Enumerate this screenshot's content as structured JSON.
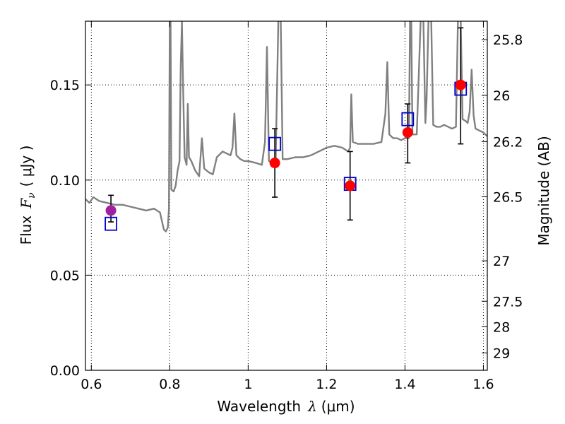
{
  "chart_data": {
    "type": "scatter",
    "xlabel": "Wavelength",
    "xlabel_symbol": "λ",
    "xlabel_unit": "(μm)",
    "ylabel": "Flux",
    "ylabel_symbol": "F",
    "ylabel_subscript": "ν",
    "ylabel_unit": "( μJy )",
    "y2label": "Magnitude (AB)",
    "xlim": [
      0.585,
      1.61
    ],
    "ylim": [
      0.0,
      0.1835
    ],
    "grid": true,
    "x_ticks": [
      {
        "value": 0.6,
        "label": "0.6"
      },
      {
        "value": 0.8,
        "label": "0.8"
      },
      {
        "value": 1.0,
        "label": "1"
      },
      {
        "value": 1.2,
        "label": "1.2"
      },
      {
        "value": 1.4,
        "label": "1.4"
      },
      {
        "value": 1.6,
        "label": "1.6"
      }
    ],
    "y_ticks": [
      {
        "value": 0.0,
        "label": "0.00"
      },
      {
        "value": 0.05,
        "label": "0.05"
      },
      {
        "value": 0.1,
        "label": "0.10"
      },
      {
        "value": 0.15,
        "label": "0.15"
      }
    ],
    "y2_ticks": [
      {
        "value": 25.8,
        "label": "25.8"
      },
      {
        "value": 26.0,
        "label": "26"
      },
      {
        "value": 26.2,
        "label": "26.2"
      },
      {
        "value": 26.5,
        "label": "26.5"
      },
      {
        "value": 27.0,
        "label": "27"
      },
      {
        "value": 27.5,
        "label": "27.5"
      },
      {
        "value": 28.0,
        "label": "28"
      },
      {
        "value": 29.0,
        "label": "29"
      }
    ],
    "model_spectrum": {
      "color": "#808080",
      "points": [
        [
          0.585,
          0.09
        ],
        [
          0.595,
          0.088
        ],
        [
          0.605,
          0.091
        ],
        [
          0.62,
          0.089
        ],
        [
          0.64,
          0.088
        ],
        [
          0.66,
          0.087
        ],
        [
          0.68,
          0.087
        ],
        [
          0.7,
          0.086
        ],
        [
          0.72,
          0.085
        ],
        [
          0.74,
          0.084
        ],
        [
          0.76,
          0.085
        ],
        [
          0.775,
          0.083
        ],
        [
          0.785,
          0.074
        ],
        [
          0.79,
          0.073
        ],
        [
          0.795,
          0.075
        ],
        [
          0.798,
          0.085
        ],
        [
          0.8,
          0.184
        ],
        [
          0.802,
          0.184
        ],
        [
          0.804,
          0.095
        ],
        [
          0.81,
          0.094
        ],
        [
          0.815,
          0.097
        ],
        [
          0.82,
          0.105
        ],
        [
          0.825,
          0.11
        ],
        [
          0.828,
          0.16
        ],
        [
          0.831,
          0.183
        ],
        [
          0.834,
          0.15
        ],
        [
          0.838,
          0.112
        ],
        [
          0.843,
          0.108
        ],
        [
          0.846,
          0.14
        ],
        [
          0.849,
          0.112
        ],
        [
          0.855,
          0.11
        ],
        [
          0.865,
          0.105
        ],
        [
          0.875,
          0.102
        ],
        [
          0.882,
          0.122
        ],
        [
          0.888,
          0.106
        ],
        [
          0.9,
          0.104
        ],
        [
          0.91,
          0.103
        ],
        [
          0.92,
          0.112
        ],
        [
          0.935,
          0.115
        ],
        [
          0.945,
          0.114
        ],
        [
          0.955,
          0.113
        ],
        [
          0.96,
          0.117
        ],
        [
          0.965,
          0.135
        ],
        [
          0.97,
          0.113
        ],
        [
          0.98,
          0.111
        ],
        [
          0.99,
          0.11
        ],
        [
          1.0,
          0.11
        ],
        [
          1.02,
          0.109
        ],
        [
          1.035,
          0.108
        ],
        [
          1.043,
          0.12
        ],
        [
          1.048,
          0.17
        ],
        [
          1.053,
          0.11
        ],
        [
          1.06,
          0.109
        ],
        [
          1.07,
          0.108
        ],
        [
          1.077,
          0.184
        ],
        [
          1.083,
          0.184
        ],
        [
          1.088,
          0.111
        ],
        [
          1.1,
          0.111
        ],
        [
          1.12,
          0.112
        ],
        [
          1.14,
          0.112
        ],
        [
          1.16,
          0.113
        ],
        [
          1.18,
          0.115
        ],
        [
          1.2,
          0.117
        ],
        [
          1.22,
          0.118
        ],
        [
          1.24,
          0.117
        ],
        [
          1.255,
          0.115
        ],
        [
          1.26,
          0.117
        ],
        [
          1.263,
          0.145
        ],
        [
          1.267,
          0.12
        ],
        [
          1.28,
          0.119
        ],
        [
          1.3,
          0.119
        ],
        [
          1.32,
          0.119
        ],
        [
          1.34,
          0.12
        ],
        [
          1.35,
          0.135
        ],
        [
          1.355,
          0.162
        ],
        [
          1.36,
          0.124
        ],
        [
          1.37,
          0.122
        ],
        [
          1.38,
          0.122
        ],
        [
          1.39,
          0.121
        ],
        [
          1.4,
          0.122
        ],
        [
          1.41,
          0.122
        ],
        [
          1.413,
          0.184
        ],
        [
          1.416,
          0.184
        ],
        [
          1.419,
          0.124
        ],
        [
          1.43,
          0.124
        ],
        [
          1.44,
          0.184
        ],
        [
          1.447,
          0.184
        ],
        [
          1.452,
          0.13
        ],
        [
          1.455,
          0.142
        ],
        [
          1.46,
          0.184
        ],
        [
          1.467,
          0.184
        ],
        [
          1.472,
          0.129
        ],
        [
          1.48,
          0.128
        ],
        [
          1.49,
          0.128
        ],
        [
          1.5,
          0.129
        ],
        [
          1.51,
          0.128
        ],
        [
          1.52,
          0.127
        ],
        [
          1.53,
          0.128
        ],
        [
          1.535,
          0.184
        ],
        [
          1.542,
          0.184
        ],
        [
          1.547,
          0.132
        ],
        [
          1.555,
          0.131
        ],
        [
          1.56,
          0.13
        ],
        [
          1.565,
          0.136
        ],
        [
          1.57,
          0.158
        ],
        [
          1.575,
          0.134
        ],
        [
          1.58,
          0.127
        ],
        [
          1.59,
          0.126
        ],
        [
          1.6,
          0.125
        ],
        [
          1.61,
          0.123
        ]
      ]
    },
    "model_boxes": {
      "color": "#0000cc",
      "x": [
        0.65,
        1.068,
        1.26,
        1.407,
        1.542
      ],
      "y": [
        0.077,
        0.119,
        0.098,
        0.132,
        0.148
      ]
    },
    "observations": {
      "error_color": "#000000",
      "points": [
        {
          "x": 0.65,
          "y": 0.084,
          "yerr_low": 0.078,
          "yerr_high": 0.092,
          "color": "#a020a0"
        },
        {
          "x": 1.068,
          "y": 0.109,
          "yerr_low": 0.091,
          "yerr_high": 0.127,
          "color": "#ff0000"
        },
        {
          "x": 1.26,
          "y": 0.097,
          "yerr_low": 0.079,
          "yerr_high": 0.115,
          "color": "#ff0000"
        },
        {
          "x": 1.407,
          "y": 0.125,
          "yerr_low": 0.109,
          "yerr_high": 0.14,
          "color": "#ff0000"
        },
        {
          "x": 1.542,
          "y": 0.15,
          "yerr_low": 0.119,
          "yerr_high": 0.18,
          "color": "#ff0000"
        }
      ]
    }
  }
}
